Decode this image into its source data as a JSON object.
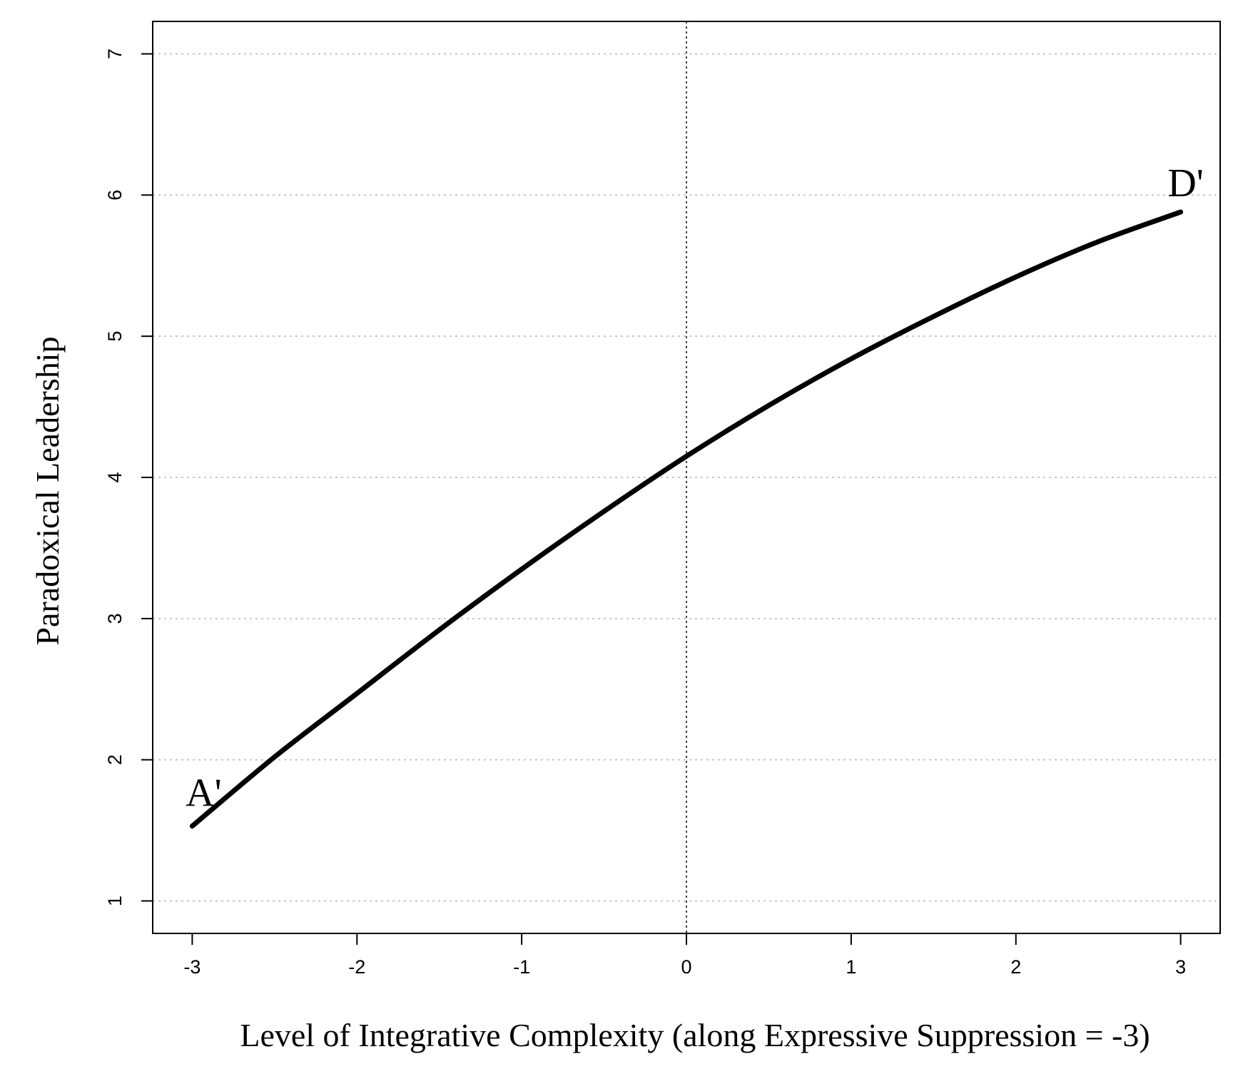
{
  "chart_data": {
    "type": "line",
    "xlabel": "Level of Integrative Complexity (along Expressive Suppression = -3)",
    "ylabel": "Paradoxical Leadership",
    "xlim": [
      -3.24,
      3.24
    ],
    "ylim": [
      0.77,
      7.23
    ],
    "x_ticks": [
      -3,
      -2,
      -1,
      0,
      1,
      2,
      3
    ],
    "x_tick_labels": [
      "-3",
      "-2",
      "-1",
      "0",
      "1",
      "2",
      "3"
    ],
    "y_ticks": [
      1,
      2,
      3,
      4,
      5,
      6,
      7
    ],
    "y_tick_labels": [
      "1",
      "2",
      "3",
      "4",
      "5",
      "6",
      "7"
    ],
    "grid": "horizontal dotted",
    "reference_line_x": 0,
    "series": [
      {
        "x": [
          -3,
          -2.5,
          -2,
          -1.5,
          -1,
          -0.5,
          0,
          0.5,
          1,
          1.5,
          2,
          2.5,
          3
        ],
        "values": [
          1.53,
          2.02,
          2.47,
          2.92,
          3.35,
          3.76,
          4.15,
          4.51,
          4.84,
          5.14,
          5.42,
          5.67,
          5.88
        ]
      }
    ],
    "annotations": [
      {
        "text": "A'",
        "x": -3,
        "y": 1.53,
        "position": "above-left"
      },
      {
        "text": "D'",
        "x": 3,
        "y": 5.88,
        "position": "above"
      }
    ]
  }
}
